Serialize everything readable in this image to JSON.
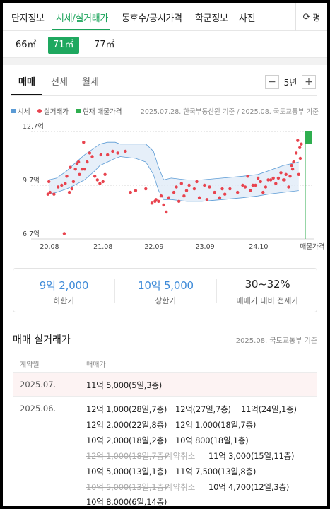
{
  "top_tabs": [
    "단지정보",
    "시세/실거래가",
    "동호수/공시가격",
    "학군정보",
    "사진"
  ],
  "top_right_button": "평",
  "sizes": [
    "66㎡",
    "71㎡",
    "77㎡"
  ],
  "trade_tabs": [
    "매매",
    "전세",
    "월세"
  ],
  "period": {
    "minus": "−",
    "value": "5년",
    "plus": "+"
  },
  "legend": {
    "items": [
      {
        "label": "시세",
        "color": "#5b9bd5"
      },
      {
        "label": "실거래가",
        "color": "#e8434e"
      },
      {
        "label": "현재 매물가격",
        "color": "#2fae4f"
      }
    ],
    "note": "2025.07.28. 한국부동산원 기준 / 2025.08. 국토교통부 기준"
  },
  "chart_data": {
    "type": "scatter",
    "y_ticks": [
      "12.7억",
      "9.7억",
      "6.7억"
    ],
    "y_values": [
      12.7,
      9.7,
      6.7
    ],
    "ylim": [
      6.7,
      12.7
    ],
    "x_ticks": [
      "20.08",
      "21.08",
      "22.09",
      "23.09",
      "24.10",
      "매물가격"
    ],
    "grid": "horizontal",
    "series": [
      {
        "name": "시세",
        "type": "area-band",
        "color": "#5b9bd5",
        "x": [
          2020.6,
          2020.75,
          2020.95,
          2021.1,
          2021.3,
          2021.5,
          2021.6,
          2021.75,
          2021.9,
          2022.0,
          2022.3,
          2022.5,
          2022.65,
          2022.75,
          2022.85,
          2023.0,
          2023.3,
          2023.6,
          2024.0,
          2024.4,
          2024.7,
          2024.9,
          2025.2,
          2025.5
        ],
        "upper": [
          10.0,
          10.1,
          10.5,
          10.9,
          11.4,
          11.8,
          12.0,
          12.1,
          12.1,
          12.0,
          12.0,
          12.0,
          11.6,
          10.7,
          10.0,
          10.1,
          10.0,
          10.0,
          10.1,
          10.2,
          10.3,
          10.5,
          10.8,
          11.0
        ],
        "lower": [
          9.2,
          9.3,
          9.5,
          9.7,
          10.0,
          10.5,
          10.8,
          11.0,
          11.2,
          11.3,
          11.2,
          11.0,
          10.3,
          9.4,
          8.9,
          8.9,
          8.8,
          8.8,
          8.9,
          9.0,
          9.1,
          9.2,
          9.3,
          9.4
        ]
      },
      {
        "name": "실거래가",
        "type": "scatter",
        "color": "#e8434e",
        "x": [
          2020.58,
          2020.6,
          2020.62,
          2020.7,
          2020.78,
          2020.85,
          2020.92,
          2020.95,
          2021.0,
          2021.05,
          2021.08,
          2021.12,
          2021.15,
          2021.2,
          2021.25,
          2021.3,
          2021.35,
          2021.4,
          2021.45,
          2021.5,
          2021.55,
          2021.6,
          2021.66,
          2021.7,
          2021.75,
          2021.85,
          2021.95,
          2022.1,
          2022.3,
          2022.5,
          2022.7,
          2022.75,
          2022.8,
          2022.85,
          2022.9,
          2022.95,
          2023.05,
          2023.1,
          2023.2,
          2023.3,
          2023.35,
          2023.45,
          2023.55,
          2023.65,
          2023.75,
          2023.85,
          2023.95,
          2024.05,
          2024.15,
          2024.3,
          2024.4,
          2024.45,
          2024.55,
          2024.6,
          2024.7,
          2024.75,
          2024.8,
          2024.85,
          2024.9,
          2024.95,
          2025.0,
          2025.05,
          2025.1,
          2025.15,
          2025.2,
          2025.25,
          2025.3,
          2025.33,
          2025.36,
          2025.4,
          2025.45,
          2025.48,
          2025.52,
          2025.55,
          2020.9,
          2021.02,
          2021.18,
          2021.28,
          2021.62,
          2022.2,
          2022.62,
          2022.68,
          2023.15,
          2023.25,
          2023.5,
          2023.7,
          2024.0,
          2024.5,
          2024.65,
          2025.22,
          2025.38,
          2025.5,
          2025.53
        ],
        "y": [
          9.2,
          9.9,
          9.3,
          9.2,
          9.6,
          9.7,
          9.8,
          10.2,
          9.3,
          9.5,
          9.9,
          10.6,
          10.9,
          10.3,
          10.6,
          10.6,
          11.0,
          11.5,
          11.3,
          10.2,
          10.0,
          9.8,
          9.9,
          10.3,
          11.4,
          11.6,
          11.5,
          11.6,
          9.4,
          9.5,
          8.9,
          8.8,
          9.1,
          8.6,
          8.2,
          9.0,
          9.3,
          9.6,
          9.8,
          9.4,
          9.7,
          9.5,
          9.0,
          9.7,
          9.6,
          9.3,
          9.0,
          9.2,
          9.5,
          9.3,
          9.7,
          9.6,
          9.4,
          9.7,
          10.1,
          9.9,
          9.3,
          9.6,
          10.0,
          10.0,
          10.1,
          9.8,
          10.1,
          10.4,
          10.0,
          10.3,
          9.6,
          10.2,
          10.8,
          11.0,
          11.5,
          12.2,
          11.8,
          12.0,
          7.0,
          10.7,
          11.0,
          12.1,
          11.4,
          9.3,
          8.7,
          8.8,
          8.8,
          9.1,
          9.9,
          8.9,
          9.5,
          10.2,
          9.7,
          10.0,
          10.6,
          10.3,
          11.2
        ]
      },
      {
        "name": "현재 매물가격",
        "type": "range",
        "color": "#2fae4f",
        "min": 12.0,
        "max": 12.7
      }
    ]
  },
  "summary": [
    {
      "value": "9억 2,000",
      "caption": "하한가"
    },
    {
      "value": "10억 5,000",
      "caption": "상한가"
    },
    {
      "value": "30~32%",
      "caption": "매매가 대비 전세가"
    }
  ],
  "deals": {
    "title": "매매 실거래가",
    "note": "2025.08. 국토교통부 기준",
    "col_month": "계약월",
    "col_price": "매매가",
    "highlight": {
      "month": "2025.07.",
      "price": "11억 5,000(5일,3층)"
    },
    "month2": "2025.06.",
    "cancel_label": "계약취소",
    "rows": [
      [
        "12억 1,000(28일,7층)",
        "12억(27일,7층)",
        "11억(24일,1층)"
      ],
      [
        "12억 2,000(22일,8층)",
        "12억 1,000(18일,7층)"
      ],
      [
        "10억 2,000(18일,2층)",
        "10억 800(18일,1층)"
      ],
      [
        "12억 1,000(18일,7층)",
        "11억 3,000(15일,11층)"
      ],
      [
        "10억 5,000(13일,1층)",
        "11억 7,500(13일,8층)"
      ],
      [
        "10억 5,000(13일,1층)",
        "10억 4,700(12일,3층)"
      ],
      [
        "10억 8,000(6일,14층)"
      ]
    ]
  }
}
